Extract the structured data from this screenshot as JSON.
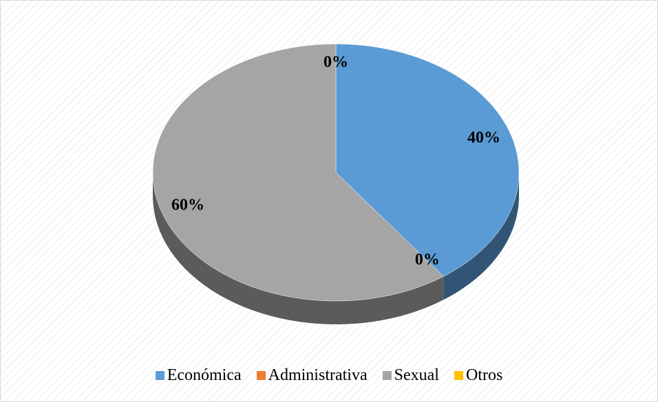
{
  "chart_data": {
    "type": "pie",
    "categories": [
      "Económica",
      "Administrativa",
      "Sexual",
      "Otros"
    ],
    "values": [
      40,
      0,
      60,
      0
    ],
    "value_labels": [
      "40%",
      "0%",
      "60%",
      "0%"
    ],
    "colors": [
      "#5b9bd5",
      "#ed7d31",
      "#a5a5a5",
      "#ffc000"
    ],
    "legend": "bottom"
  }
}
